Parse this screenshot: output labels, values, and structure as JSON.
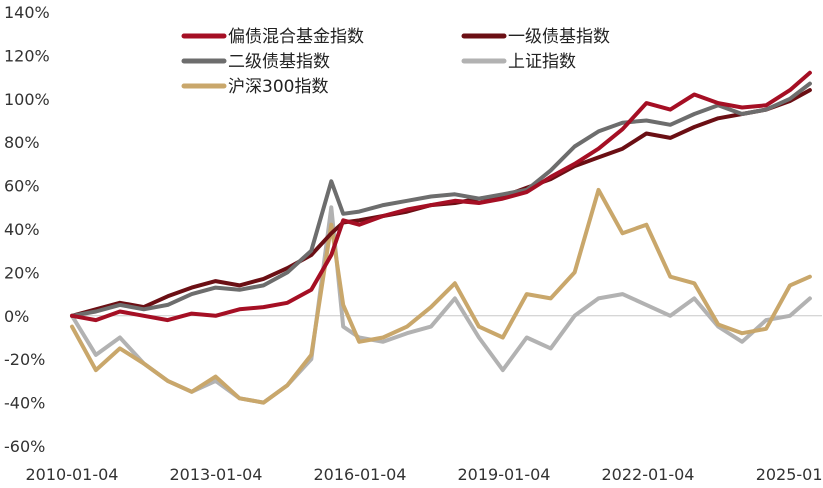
{
  "chart_data": {
    "type": "line",
    "title": "",
    "xlabel": "",
    "ylabel": "",
    "ylim": [
      -60,
      140
    ],
    "yticks": [
      "140%",
      "120%",
      "100%",
      "80%",
      "60%",
      "40%",
      "20%",
      "0%",
      "-20%",
      "-40%",
      "-60%"
    ],
    "xticks": [
      "2010-01-04",
      "2013-01-04",
      "2016-01-04",
      "2019-01-04",
      "2022-01-04",
      "2025-01-"
    ],
    "legend_position": "top-left",
    "x": [
      "2010-01",
      "2010-07",
      "2011-01",
      "2011-07",
      "2012-01",
      "2012-07",
      "2013-01",
      "2013-07",
      "2014-01",
      "2014-07",
      "2015-01",
      "2015-06",
      "2015-09",
      "2016-01",
      "2016-07",
      "2017-01",
      "2017-07",
      "2018-01",
      "2018-07",
      "2019-01",
      "2019-07",
      "2020-01",
      "2020-07",
      "2021-01",
      "2021-07",
      "2022-01",
      "2022-07",
      "2023-01",
      "2023-07",
      "2024-01",
      "2024-07",
      "2025-01",
      "2025-06"
    ],
    "series": [
      {
        "name": "偏债混合基金指数",
        "color": "#a50f24",
        "values": [
          0,
          -2,
          2,
          0,
          -2,
          1,
          0,
          3,
          4,
          6,
          12,
          28,
          44,
          42,
          46,
          49,
          51,
          53,
          52,
          54,
          57,
          64,
          70,
          77,
          86,
          98,
          95,
          102,
          98,
          96,
          97,
          104,
          112
        ]
      },
      {
        "name": "一级债基指数",
        "color": "#6b0f14",
        "values": [
          0,
          3,
          6,
          4,
          9,
          13,
          16,
          14,
          17,
          22,
          28,
          38,
          43,
          44,
          46,
          48,
          51,
          52,
          54,
          55,
          59,
          63,
          69,
          73,
          77,
          84,
          82,
          87,
          91,
          93,
          95,
          99,
          104
        ]
      },
      {
        "name": "二级债基指数",
        "color": "#6d6d6d",
        "values": [
          0,
          2,
          5,
          3,
          5,
          10,
          13,
          12,
          14,
          20,
          30,
          62,
          47,
          48,
          51,
          53,
          55,
          56,
          54,
          56,
          58,
          67,
          78,
          85,
          89,
          90,
          88,
          93,
          97,
          93,
          95,
          100,
          107
        ]
      },
      {
        "name": "上证指数",
        "color": "#b2b2b2",
        "values": [
          0,
          -18,
          -10,
          -22,
          -30,
          -35,
          -30,
          -38,
          -40,
          -32,
          -20,
          50,
          -5,
          -10,
          -12,
          -8,
          -5,
          8,
          -10,
          -25,
          -10,
          -15,
          0,
          8,
          10,
          5,
          0,
          8,
          -5,
          -12,
          -2,
          0,
          8
        ]
      },
      {
        "name": "沪深300指数",
        "color": "#c9a76b",
        "values": [
          -5,
          -25,
          -15,
          -22,
          -30,
          -35,
          -28,
          -38,
          -40,
          -32,
          -18,
          42,
          5,
          -12,
          -10,
          -5,
          4,
          15,
          -5,
          -10,
          10,
          8,
          20,
          58,
          38,
          42,
          18,
          15,
          -4,
          -8,
          -6,
          14,
          18
        ]
      }
    ]
  }
}
